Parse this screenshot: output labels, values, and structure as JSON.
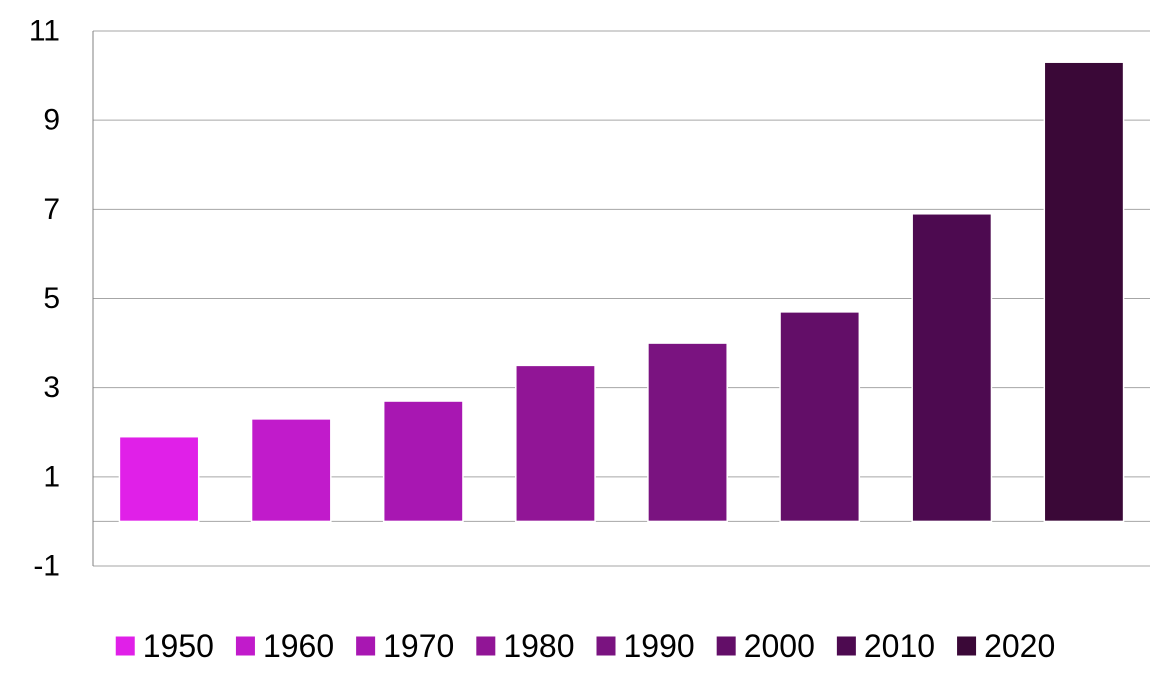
{
  "chart_data": {
    "type": "bar",
    "title": "",
    "xlabel": "",
    "ylabel": "",
    "categories": [
      "1950",
      "1960",
      "1970",
      "1980",
      "1990",
      "2000",
      "2010",
      "2020"
    ],
    "series": [
      {
        "name": "1950",
        "values": [
          1.9,
          null,
          null,
          null,
          null,
          null,
          null,
          null
        ],
        "color": "#E020E8"
      },
      {
        "name": "1960",
        "values": [
          null,
          2.3,
          null,
          null,
          null,
          null,
          null,
          null
        ],
        "color": "#C11BCB"
      },
      {
        "name": "1970",
        "values": [
          null,
          null,
          2.7,
          null,
          null,
          null,
          null,
          null
        ],
        "color": "#A817B2"
      },
      {
        "name": "1980",
        "values": [
          null,
          null,
          null,
          3.5,
          null,
          null,
          null,
          null
        ],
        "color": "#911596"
      },
      {
        "name": "1990",
        "values": [
          null,
          null,
          null,
          null,
          4.0,
          null,
          null,
          null
        ],
        "color": "#7A1380"
      },
      {
        "name": "2000",
        "values": [
          null,
          null,
          null,
          null,
          null,
          4.7,
          null,
          null
        ],
        "color": "#630E68"
      },
      {
        "name": "2010",
        "values": [
          null,
          null,
          null,
          null,
          null,
          null,
          6.9,
          null
        ],
        "color": "#4D0A50"
      },
      {
        "name": "2020",
        "values": [
          null,
          null,
          null,
          null,
          null,
          null,
          null,
          10.3
        ],
        "color": "#3A0837"
      }
    ],
    "ylim": [
      -1,
      11
    ],
    "yticks": [
      "11",
      "9",
      "7",
      "5",
      "3",
      "1",
      "-1"
    ],
    "ytick_values": [
      11,
      9,
      7,
      5,
      3,
      1,
      -1
    ],
    "grid": true,
    "legend_position": "bottom",
    "colors": {
      "gridline": "#A6A6A6",
      "axis": "#808080",
      "bar_edge": "#FFFFFF"
    }
  }
}
